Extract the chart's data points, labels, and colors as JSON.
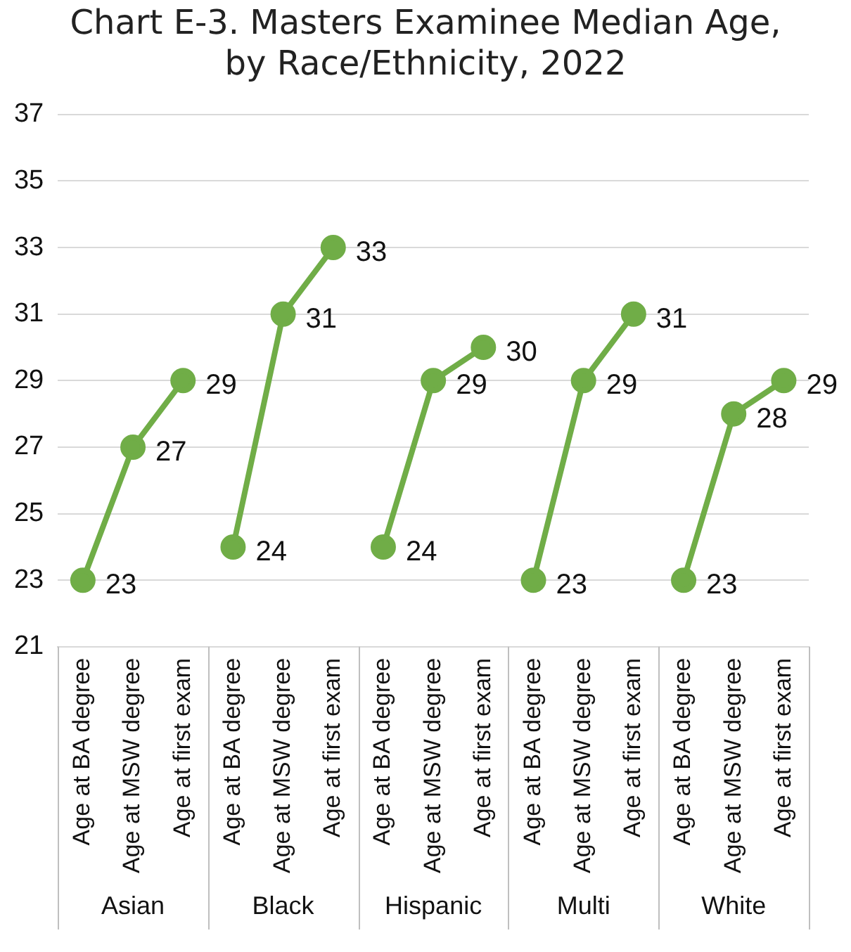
{
  "chart_data": {
    "type": "line",
    "title": "Chart E-3. Masters Examinee Median Age, by Race/Ethnicity, 2022",
    "categories": [
      "Age at BA degree",
      "Age at MSW degree",
      "Age at first exam",
      "Age at BA degree",
      "Age at MSW degree",
      "Age at first exam",
      "Age at BA degree",
      "Age at MSW degree",
      "Age at first exam",
      "Age at BA degree",
      "Age at MSW degree",
      "Age at first exam",
      "Age at BA degree",
      "Age at MSW degree",
      "Age at first exam"
    ],
    "series": [
      {
        "color": "#70ad47",
        "values": [
          23,
          27,
          29,
          null,
          null,
          null,
          null,
          null,
          null,
          null,
          null,
          null,
          null,
          null,
          null
        ]
      },
      {
        "color": "#70ad47",
        "values": [
          null,
          null,
          null,
          24,
          31,
          33,
          null,
          null,
          null,
          null,
          null,
          null,
          null,
          null,
          null
        ]
      },
      {
        "color": "#70ad47",
        "values": [
          null,
          null,
          null,
          null,
          null,
          null,
          24,
          29,
          30,
          null,
          null,
          null,
          null,
          null,
          null
        ]
      },
      {
        "color": "#70ad47",
        "values": [
          null,
          null,
          null,
          null,
          null,
          null,
          null,
          null,
          null,
          23,
          29,
          31,
          null,
          null,
          null
        ]
      },
      {
        "color": "#70ad47",
        "values": [
          null,
          null,
          null,
          null,
          null,
          null,
          null,
          null,
          null,
          null,
          null,
          null,
          23,
          28,
          29
        ]
      }
    ],
    "ylim": [
      21,
      37
    ],
    "yticks": [
      21,
      23,
      25,
      27,
      29,
      31,
      33,
      35,
      37
    ],
    "annotations": [
      "Asian",
      "Black",
      "Hispanic",
      "Multi",
      "White"
    ],
    "grid": "y",
    "legend": false,
    "marker": "circle",
    "line_style": "solid",
    "data_labels": true
  }
}
